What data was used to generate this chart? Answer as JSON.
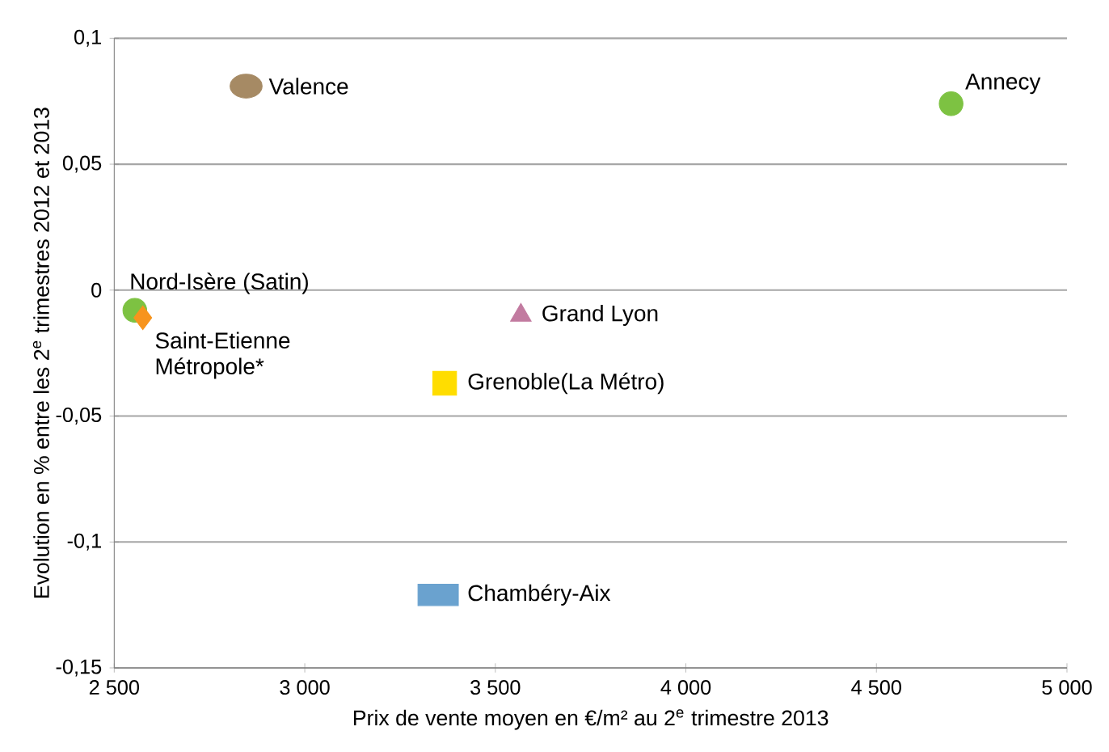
{
  "chart_data": {
    "type": "scatter",
    "xlabel": "Prix de vente moyen en €/m² au 2$^{e}$ trimestre 2013",
    "ylabel": "Evolution en % entre les 2$^{e}$ trimestres 2012 et 2013",
    "xlim": [
      2500,
      5000
    ],
    "ylim": [
      -0.15,
      0.1
    ],
    "xticks": [
      {
        "value": 2500,
        "label": "2 500"
      },
      {
        "value": 3000,
        "label": "3 000"
      },
      {
        "value": 3500,
        "label": "3 500"
      },
      {
        "value": 4000,
        "label": "4 000"
      },
      {
        "value": 4500,
        "label": "4 500"
      },
      {
        "value": 5000,
        "label": "5 000"
      }
    ],
    "yticks": [
      {
        "value": -0.15,
        "label": "-0,15"
      },
      {
        "value": -0.1,
        "label": "-0,1"
      },
      {
        "value": -0.05,
        "label": "-0,05"
      },
      {
        "value": 0,
        "label": "0"
      },
      {
        "value": 0.05,
        "label": "0,05"
      },
      {
        "value": 0.1,
        "label": "0,1"
      }
    ],
    "grid": "y",
    "legend": false,
    "series": [
      {
        "name": "Valence",
        "color": "#a68a64",
        "marker": "circle",
        "x": [
          2846
        ],
        "values": [
          0.081
        ]
      },
      {
        "name": "Annecy",
        "color": "#7dc242",
        "marker": "circle",
        "x": [
          4696
        ],
        "values": [
          0.074
        ]
      },
      {
        "name": "Nord-Isère (Satin)",
        "color": "#7dc242",
        "marker": "circle",
        "x": [
          2554
        ],
        "values": [
          -0.008
        ]
      },
      {
        "name": "Saint-Etienne Métropole*",
        "color": "#f7941d",
        "marker": "diamond",
        "x": [
          2575
        ],
        "values": [
          -0.011
        ]
      },
      {
        "name": "Grand Lyon",
        "color": "#c27ba0",
        "marker": "triangle",
        "x": [
          3567
        ],
        "values": [
          -0.01
        ]
      },
      {
        "name": "Grenoble(La Métro)",
        "color": "#ffdd00",
        "marker": "square",
        "x": [
          3367
        ],
        "values": [
          -0.037
        ]
      },
      {
        "name": "Chambéry-Aix",
        "color": "#6aa2cf",
        "marker": "square",
        "x": [
          3350
        ],
        "values": [
          -0.121
        ]
      }
    ]
  }
}
